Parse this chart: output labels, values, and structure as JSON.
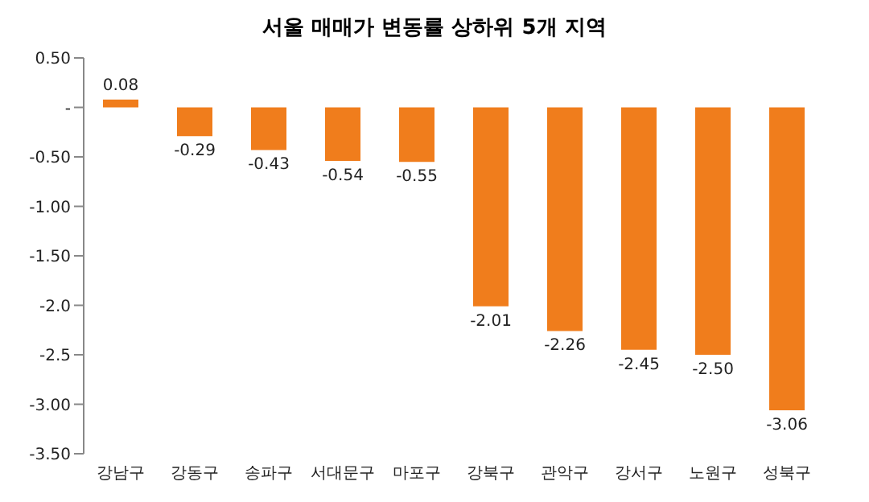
{
  "chart_data": {
    "type": "bar",
    "title": "서울 매매가 변동률 상하위 5개 지역",
    "categories": [
      "강남구",
      "강동구",
      "송파구",
      "서대문구",
      "마포구",
      "강북구",
      "관악구",
      "강서구",
      "노원구",
      "성북구"
    ],
    "values": [
      0.08,
      -0.29,
      -0.43,
      -0.54,
      -0.55,
      -2.01,
      -2.26,
      -2.45,
      -2.5,
      -3.06
    ],
    "value_labels": [
      "0.08",
      "-0.29",
      "-0.43",
      "-0.54",
      "-0.55",
      "-2.01",
      "-2.26",
      "-2.45",
      "-2.50",
      "-3.06"
    ],
    "color": "#f07d1c",
    "ylim": [
      -3.5,
      0.5
    ],
    "yticks": [
      {
        "value": 0.5,
        "label": "0.50"
      },
      {
        "value": 0,
        "label": "-"
      },
      {
        "value": -0.5,
        "label": "-0.50"
      },
      {
        "value": -1,
        "label": "-1.00"
      },
      {
        "value": -1.5,
        "label": "-1.50"
      },
      {
        "value": -2,
        "label": "-2.0"
      },
      {
        "value": -2.5,
        "label": "-2.5"
      },
      {
        "value": -3,
        "label": "-3.00"
      },
      {
        "value": -3.5,
        "label": "-3.50"
      }
    ],
    "grid": false
  }
}
